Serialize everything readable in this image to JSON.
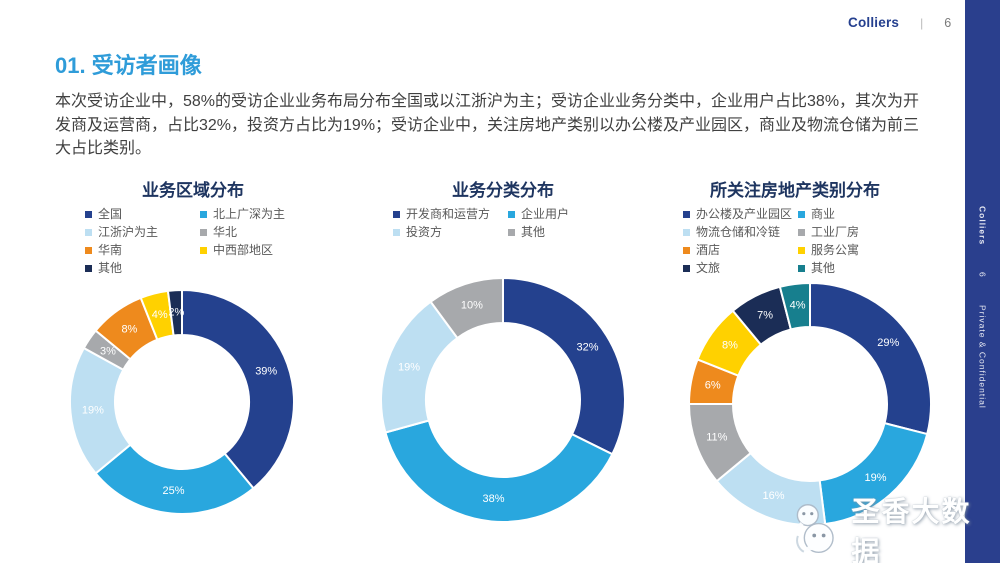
{
  "header": {
    "brand": "Colliers",
    "separator": "|",
    "page_number": "6"
  },
  "title": "01. 受访者画像",
  "paragraph": "本次受访企业中，58%的受访企业业务布局分布全国或以江浙沪为主；受访企业业务分类中，企业用户占比38%，其次为开发商及运营商，占比32%，投资方占比为19%；受访企业中，关注房地产类别以办公楼及产业园区，商业及物流仓储为前三大占比类别。",
  "colors": {
    "accent_title": "#2F9CD9",
    "chart_title": "#1E3560",
    "brand_blue": "#25408F",
    "sidebar_bg": "#2A3F8D",
    "legend_text": "#595959"
  },
  "chart_data": [
    {
      "type": "donut",
      "title": "业务区域分布",
      "legend_position": "top",
      "categories": [
        "全国",
        "北上广深为主",
        "江浙沪为主",
        "华北",
        "华南",
        "中西部地区",
        "其他"
      ],
      "values": [
        39,
        25,
        19,
        3,
        8,
        4,
        2
      ],
      "labels": [
        "39%",
        "25%",
        "19%",
        "3%",
        "8%",
        "4%",
        "2%"
      ],
      "colors": [
        "#24418E",
        "#29A7DE",
        "#BDDFF2",
        "#A7A9AC",
        "#EE8A1D",
        "#FFD100",
        "#1B2D56"
      ]
    },
    {
      "type": "donut",
      "title": "业务分类分布",
      "legend_position": "top",
      "categories": [
        "开发商和运营方",
        "企业用户",
        "投资方",
        "其他"
      ],
      "values": [
        32,
        38,
        19,
        10
      ],
      "labels": [
        "32%",
        "38%",
        "19%",
        "10%"
      ],
      "colors": [
        "#24418E",
        "#29A7DE",
        "#BDDFF2",
        "#A7A9AC"
      ]
    },
    {
      "type": "donut",
      "title": "所关注房地产类别分布",
      "legend_position": "top",
      "categories": [
        "办公楼及产业园区",
        "商业",
        "物流仓储和冷链",
        "工业厂房",
        "酒店",
        "服务公寓",
        "文旅",
        "其他"
      ],
      "values": [
        29,
        19,
        16,
        11,
        6,
        8,
        7,
        4
      ],
      "labels": [
        "29%",
        "19%",
        "16%",
        "11%",
        "6%",
        "8%",
        "7%",
        "4%"
      ],
      "colors": [
        "#24418E",
        "#29A7DE",
        "#BDDFF2",
        "#A7A9AC",
        "#EE8A1D",
        "#FFD100",
        "#1B2D56",
        "#177F8E"
      ]
    }
  ],
  "sidebar": {
    "brand": "Colliers",
    "page_number": "6",
    "confidential": "Private & Confidential"
  },
  "watermark": {
    "text": "圣香大数据",
    "icon": "wechat-icon"
  }
}
